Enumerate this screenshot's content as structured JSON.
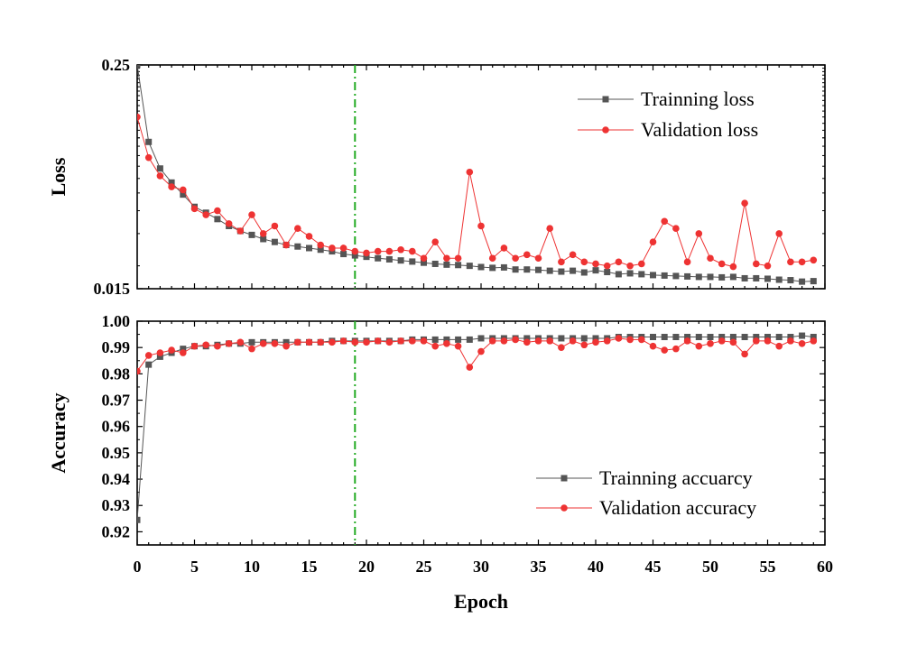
{
  "chart_data": [
    {
      "type": "line",
      "ylabel": "Loss",
      "xlabel": "",
      "xlim": [
        0,
        60
      ],
      "ylim": [
        0.015,
        0.25
      ],
      "yscale": "log",
      "ytick_labels": [
        "0.015",
        "0.25"
      ],
      "ytick_values": [
        0.015,
        0.25
      ],
      "reference_line": {
        "x": 19,
        "style": "dash-dot",
        "color": "#22aa22"
      },
      "legend_position": "top-right",
      "series": [
        {
          "name": "Trainning loss",
          "color": "#555555",
          "marker": "square",
          "x": [
            0,
            1,
            2,
            3,
            4,
            5,
            6,
            7,
            8,
            9,
            10,
            11,
            12,
            13,
            14,
            15,
            16,
            17,
            18,
            19,
            20,
            21,
            22,
            23,
            24,
            25,
            26,
            27,
            28,
            29,
            30,
            31,
            32,
            33,
            34,
            35,
            36,
            37,
            38,
            39,
            40,
            41,
            42,
            43,
            44,
            45,
            46,
            47,
            48,
            49,
            50,
            51,
            52,
            53,
            54,
            55,
            56,
            57,
            58,
            59
          ],
          "values": [
            0.25,
            0.095,
            0.068,
            0.057,
            0.049,
            0.042,
            0.039,
            0.036,
            0.033,
            0.031,
            0.0295,
            0.028,
            0.027,
            0.026,
            0.0255,
            0.025,
            0.0245,
            0.024,
            0.0232,
            0.0228,
            0.0224,
            0.022,
            0.0217,
            0.0214,
            0.0211,
            0.0208,
            0.0205,
            0.0203,
            0.0202,
            0.02,
            0.0197,
            0.0195,
            0.0196,
            0.0191,
            0.0191,
            0.019,
            0.0188,
            0.0186,
            0.0188,
            0.0184,
            0.0189,
            0.0185,
            0.018,
            0.0182,
            0.018,
            0.0178,
            0.0177,
            0.0176,
            0.0175,
            0.0174,
            0.0174,
            0.0173,
            0.0174,
            0.0171,
            0.0171,
            0.017,
            0.0168,
            0.0167,
            0.0164,
            0.0165
          ]
        },
        {
          "name": "Validation loss",
          "color": "#ee3333",
          "marker": "circle",
          "x": [
            0,
            1,
            2,
            3,
            4,
            5,
            6,
            7,
            8,
            9,
            10,
            11,
            12,
            13,
            14,
            15,
            16,
            17,
            18,
            19,
            20,
            21,
            22,
            23,
            24,
            25,
            26,
            27,
            28,
            29,
            30,
            31,
            32,
            33,
            34,
            35,
            36,
            37,
            38,
            39,
            40,
            41,
            42,
            43,
            44,
            45,
            46,
            47,
            48,
            49,
            50,
            51,
            52,
            53,
            54,
            55,
            56,
            57,
            58,
            59
          ],
          "values": [
            0.13,
            0.078,
            0.062,
            0.054,
            0.052,
            0.041,
            0.038,
            0.04,
            0.034,
            0.031,
            0.038,
            0.03,
            0.033,
            0.026,
            0.032,
            0.029,
            0.026,
            0.025,
            0.025,
            0.024,
            0.0235,
            0.024,
            0.024,
            0.0245,
            0.024,
            0.022,
            0.027,
            0.022,
            0.022,
            0.065,
            0.033,
            0.022,
            0.025,
            0.022,
            0.023,
            0.022,
            0.032,
            0.021,
            0.023,
            0.021,
            0.0205,
            0.02,
            0.021,
            0.02,
            0.0205,
            0.027,
            0.035,
            0.032,
            0.021,
            0.03,
            0.022,
            0.0205,
            0.0198,
            0.044,
            0.0205,
            0.02,
            0.03,
            0.021,
            0.021,
            0.0215
          ]
        }
      ]
    },
    {
      "type": "line",
      "xlabel": "Epoch",
      "ylabel": "Accuracy",
      "xlim": [
        0,
        60
      ],
      "ylim": [
        0.915,
        1.0
      ],
      "xtick_labels": [
        "0",
        "5",
        "10",
        "15",
        "20",
        "25",
        "30",
        "35",
        "40",
        "45",
        "50",
        "55",
        "60"
      ],
      "ytick_labels": [
        "0.92",
        "0.93",
        "0.94",
        "0.95",
        "0.96",
        "0.97",
        "0.98",
        "0.99",
        "1.00"
      ],
      "reference_line": {
        "x": 19,
        "style": "dash-dot",
        "color": "#22aa22"
      },
      "legend_position": "bottom-right",
      "series": [
        {
          "name": "Trainning accuarcy",
          "color": "#555555",
          "marker": "square",
          "x": [
            0,
            1,
            2,
            3,
            4,
            5,
            6,
            7,
            8,
            9,
            10,
            11,
            12,
            13,
            14,
            15,
            16,
            17,
            18,
            19,
            20,
            21,
            22,
            23,
            24,
            25,
            26,
            27,
            28,
            29,
            30,
            31,
            32,
            33,
            34,
            35,
            36,
            37,
            38,
            39,
            40,
            41,
            42,
            43,
            44,
            45,
            46,
            47,
            48,
            49,
            50,
            51,
            52,
            53,
            54,
            55,
            56,
            57,
            58,
            59
          ],
          "values": [
            0.9245,
            0.9835,
            0.9865,
            0.988,
            0.9895,
            0.9905,
            0.9905,
            0.991,
            0.9915,
            0.9915,
            0.992,
            0.992,
            0.992,
            0.992,
            0.992,
            0.992,
            0.992,
            0.9925,
            0.9925,
            0.9925,
            0.9925,
            0.9925,
            0.9925,
            0.9925,
            0.993,
            0.993,
            0.993,
            0.993,
            0.993,
            0.993,
            0.9935,
            0.9935,
            0.9935,
            0.9935,
            0.9935,
            0.9935,
            0.9935,
            0.9935,
            0.9935,
            0.9935,
            0.9935,
            0.9935,
            0.994,
            0.994,
            0.994,
            0.994,
            0.994,
            0.994,
            0.994,
            0.994,
            0.994,
            0.994,
            0.994,
            0.994,
            0.994,
            0.994,
            0.994,
            0.994,
            0.9945,
            0.994
          ]
        },
        {
          "name": "Validation accuracy",
          "color": "#ee3333",
          "marker": "circle",
          "x": [
            0,
            1,
            2,
            3,
            4,
            5,
            6,
            7,
            8,
            9,
            10,
            11,
            12,
            13,
            14,
            15,
            16,
            17,
            18,
            19,
            20,
            21,
            22,
            23,
            24,
            25,
            26,
            27,
            28,
            29,
            30,
            31,
            32,
            33,
            34,
            35,
            36,
            37,
            38,
            39,
            40,
            41,
            42,
            43,
            44,
            45,
            46,
            47,
            48,
            49,
            50,
            51,
            52,
            53,
            54,
            55,
            56,
            57,
            58,
            59
          ],
          "values": [
            0.981,
            0.987,
            0.988,
            0.989,
            0.988,
            0.9905,
            0.991,
            0.9905,
            0.9915,
            0.992,
            0.9895,
            0.9915,
            0.9915,
            0.9905,
            0.992,
            0.992,
            0.992,
            0.992,
            0.9925,
            0.992,
            0.992,
            0.9925,
            0.992,
            0.9925,
            0.9925,
            0.9925,
            0.9905,
            0.9915,
            0.9905,
            0.9825,
            0.9885,
            0.9925,
            0.9925,
            0.993,
            0.992,
            0.9925,
            0.9925,
            0.99,
            0.9925,
            0.991,
            0.992,
            0.9925,
            0.9935,
            0.993,
            0.993,
            0.9905,
            0.989,
            0.9895,
            0.9925,
            0.9905,
            0.9915,
            0.9925,
            0.992,
            0.9875,
            0.9925,
            0.9925,
            0.9905,
            0.9925,
            0.9915,
            0.9925
          ]
        }
      ]
    }
  ]
}
